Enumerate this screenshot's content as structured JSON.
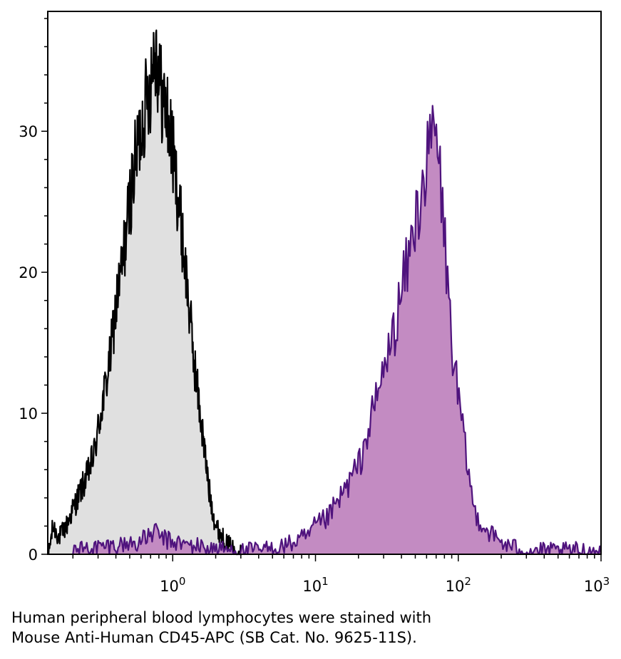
{
  "chart_data": {
    "type": "area",
    "x_scale": "log",
    "xlim": [
      0.1333,
      1000
    ],
    "ylim": [
      0,
      38.5
    ],
    "x_ticks": [
      {
        "value": 1,
        "base": "10",
        "exp": "0"
      },
      {
        "value": 10,
        "base": "10",
        "exp": "1"
      },
      {
        "value": 100,
        "base": "10",
        "exp": "2"
      },
      {
        "value": 1000,
        "base": "10",
        "exp": "3"
      }
    ],
    "y_ticks": [
      "0",
      "10",
      "20",
      "30"
    ],
    "y_tick_values": [
      0,
      10,
      20,
      30
    ],
    "series": [
      {
        "role": "isotype-control",
        "fill": "#e0e0e0",
        "stroke": "#000000",
        "points": [
          [
            0.135,
            0
          ],
          [
            0.145,
            2.0
          ],
          [
            0.16,
            1.2
          ],
          [
            0.18,
            2.0
          ],
          [
            0.2,
            3.2
          ],
          [
            0.22,
            4.2
          ],
          [
            0.25,
            5.5
          ],
          [
            0.28,
            7.0
          ],
          [
            0.32,
            10.5
          ],
          [
            0.36,
            13.5
          ],
          [
            0.4,
            17.5
          ],
          [
            0.45,
            21.0
          ],
          [
            0.5,
            25.0
          ],
          [
            0.55,
            28.0
          ],
          [
            0.62,
            31.0
          ],
          [
            0.7,
            33.5
          ],
          [
            0.75,
            36.5
          ],
          [
            0.82,
            33.0
          ],
          [
            0.92,
            31.0
          ],
          [
            1.0,
            28.5
          ],
          [
            1.1,
            25.0
          ],
          [
            1.25,
            19.5
          ],
          [
            1.4,
            14.0
          ],
          [
            1.6,
            9.0
          ],
          [
            1.8,
            4.5
          ],
          [
            2.0,
            2.0
          ],
          [
            2.3,
            1.0
          ],
          [
            2.7,
            0.3
          ],
          [
            3.1,
            0
          ]
        ]
      },
      {
        "role": "CD45-APC",
        "fill": "#c38bc2",
        "stroke": "#4f137d",
        "points": [
          [
            0.2,
            0.3
          ],
          [
            0.3,
            0.5
          ],
          [
            0.45,
            0.7
          ],
          [
            0.6,
            0.9
          ],
          [
            0.75,
            1.6
          ],
          [
            0.9,
            1.0
          ],
          [
            1.2,
            0.7
          ],
          [
            2.0,
            0.4
          ],
          [
            3.0,
            0.2
          ],
          [
            5.0,
            0.4
          ],
          [
            7.0,
            0.8
          ],
          [
            9.0,
            1.3
          ],
          [
            10.0,
            2.0
          ],
          [
            12.0,
            2.5
          ],
          [
            14.0,
            3.5
          ],
          [
            16.0,
            4.5
          ],
          [
            18.0,
            5.5
          ],
          [
            20.0,
            6.2
          ],
          [
            23.0,
            8.5
          ],
          [
            26.0,
            10.5
          ],
          [
            30.0,
            13.0
          ],
          [
            35.0,
            15.5
          ],
          [
            40.0,
            18.5
          ],
          [
            45.0,
            21.0
          ],
          [
            50.0,
            23.5
          ],
          [
            55.0,
            26.0
          ],
          [
            62.0,
            28.0
          ],
          [
            68.0,
            30.5
          ],
          [
            75.0,
            26.5
          ],
          [
            82.0,
            21.0
          ],
          [
            90.0,
            15.0
          ],
          [
            100.0,
            11.0
          ],
          [
            115.0,
            6.5
          ],
          [
            130.0,
            3.0
          ],
          [
            150.0,
            2.0
          ],
          [
            180.0,
            1.2
          ],
          [
            220.0,
            0.6
          ],
          [
            300.0,
            0.3
          ],
          [
            500.0,
            0.2
          ],
          [
            700.0,
            0.3
          ],
          [
            1000.0,
            0.2
          ]
        ]
      }
    ]
  },
  "caption": {
    "line1": "Human peripheral blood lymphocytes were stained with",
    "line2": "Mouse Anti-Human CD45-APC (SB Cat. No. 9625-11S)."
  }
}
